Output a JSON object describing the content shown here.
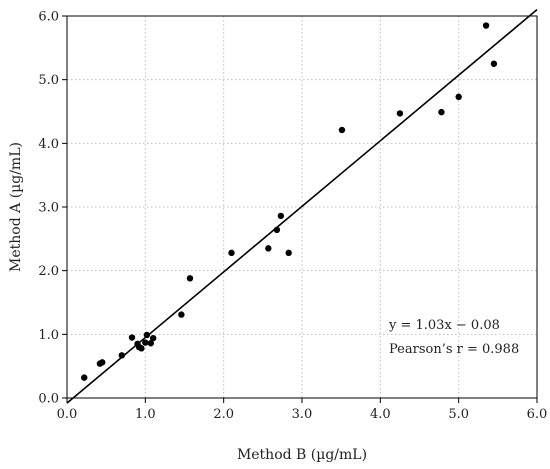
{
  "chart_data": {
    "type": "scatter",
    "title": "",
    "xlabel": "Method B (µg/mL)",
    "ylabel": "Method A (µg/mL)",
    "xlim": [
      0.0,
      6.0
    ],
    "ylim": [
      0.0,
      6.0
    ],
    "xticks": [
      "0.0",
      "1.0",
      "2.0",
      "3.0",
      "4.0",
      "5.0",
      "6.0"
    ],
    "yticks": [
      "0.0",
      "1.0",
      "2.0",
      "3.0",
      "4.0",
      "5.0",
      "6.0"
    ],
    "grid": true,
    "grid_style": "dotted",
    "point_color": "#000000",
    "series": [
      {
        "x": [
          0.22,
          0.42,
          0.45,
          0.7,
          0.83,
          0.9,
          0.92,
          0.95,
          1.0,
          1.02,
          1.07,
          1.1,
          1.46,
          1.57,
          2.1,
          2.57,
          2.68,
          2.73,
          2.83,
          3.51,
          4.25,
          4.78,
          5.0,
          5.35,
          5.45
        ],
        "y": [
          0.32,
          0.54,
          0.56,
          0.67,
          0.95,
          0.85,
          0.8,
          0.78,
          0.87,
          0.99,
          0.86,
          0.94,
          1.31,
          1.88,
          2.28,
          2.35,
          2.64,
          2.86,
          2.28,
          4.21,
          4.47,
          4.49,
          4.73,
          5.85,
          5.25
        ]
      }
    ],
    "fit_line": {
      "slope": 1.03,
      "intercept": -0.08
    },
    "annotations": [
      "y = 1.03x − 0.08",
      "Pearson’s r = 0.988"
    ]
  }
}
